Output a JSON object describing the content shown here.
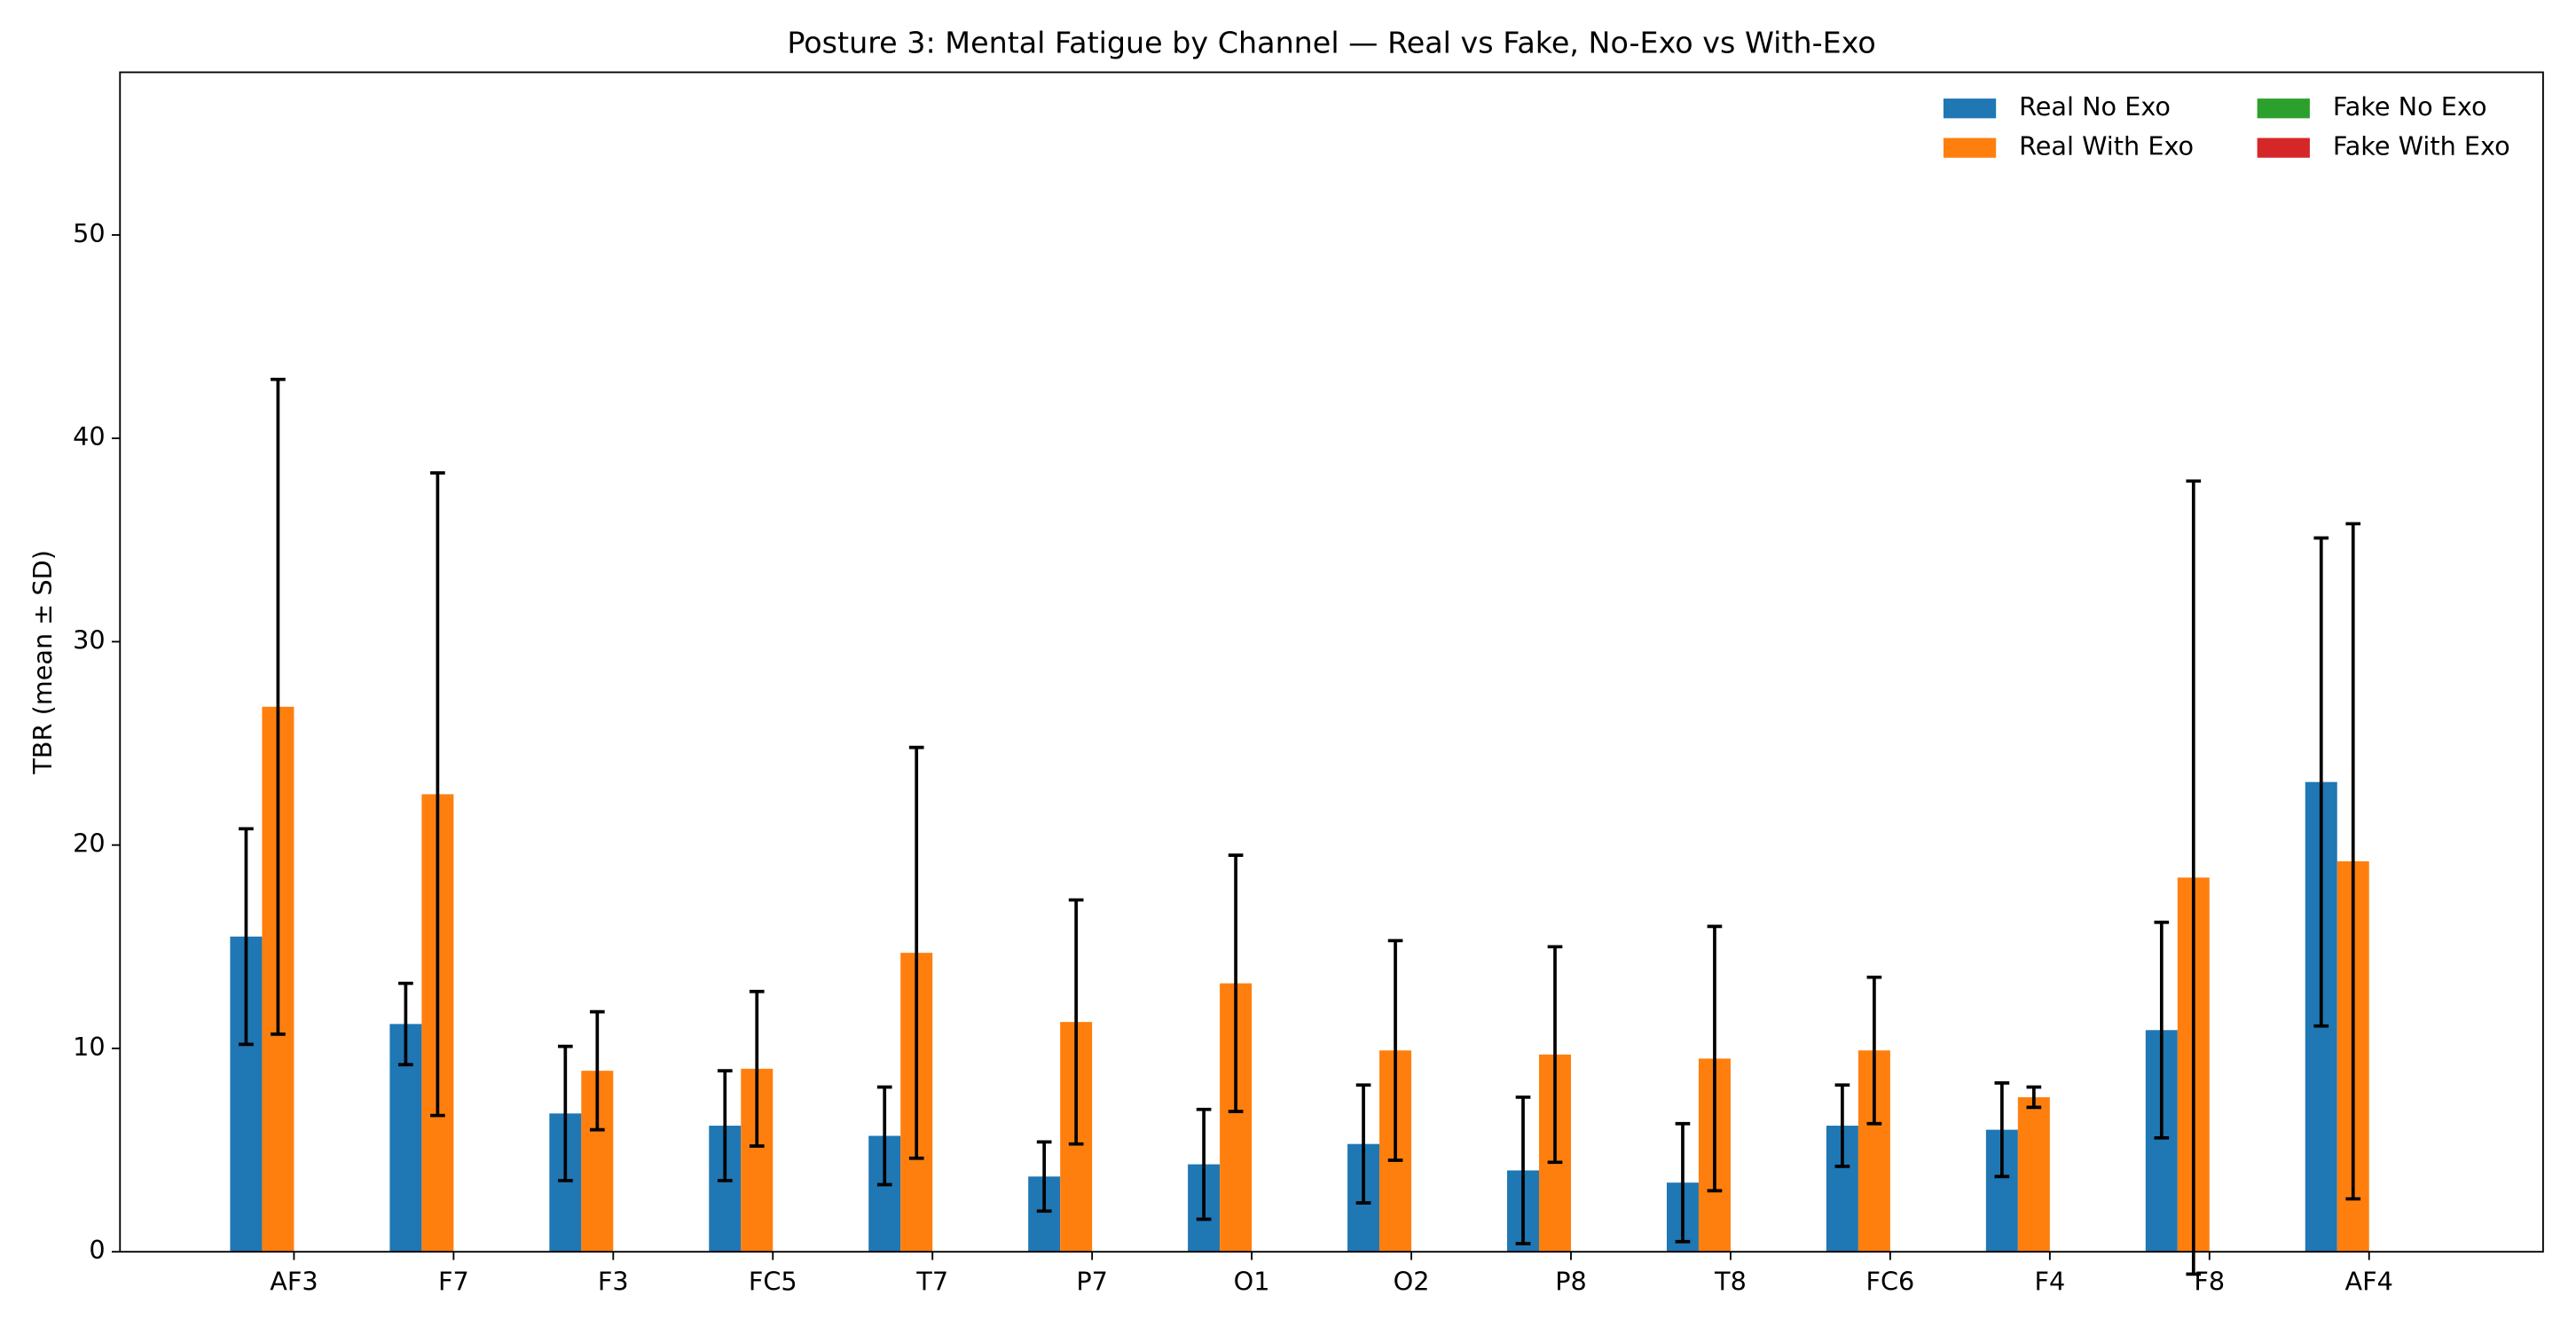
{
  "chart_data": {
    "type": "bar",
    "title": "Posture 3: Mental Fatigue by Channel — Real vs Fake, No-Exo vs With-Exo",
    "y_label": "TBR (mean ± SD)",
    "categories": [
      "AF3",
      "F7",
      "F3",
      "FC5",
      "T7",
      "P7",
      "O1",
      "O2",
      "P8",
      "T8",
      "FC6",
      "F4",
      "F8",
      "AF4"
    ],
    "series": [
      {
        "name": "Real No Exo",
        "color": "#1f77b4",
        "values": [
          15.5,
          11.2,
          6.8,
          6.2,
          5.7,
          3.7,
          4.3,
          5.3,
          4.0,
          3.4,
          6.2,
          6.0,
          10.9,
          23.1
        ],
        "errors": [
          5.3,
          2.0,
          3.3,
          2.7,
          2.4,
          1.7,
          2.7,
          2.9,
          3.6,
          2.9,
          2.0,
          2.3,
          5.3,
          12.0
        ]
      },
      {
        "name": "Real With Exo",
        "color": "#ff7f0e",
        "values": [
          26.8,
          22.5,
          8.9,
          9.0,
          14.7,
          11.3,
          13.2,
          9.9,
          9.7,
          9.5,
          9.9,
          7.6,
          18.4,
          19.2
        ],
        "errors": [
          16.1,
          15.8,
          2.9,
          3.8,
          10.1,
          6.0,
          6.3,
          5.4,
          5.3,
          6.5,
          3.6,
          0.5,
          19.5,
          16.6
        ]
      },
      {
        "name": "Fake No Exo",
        "color": "#2ca02c",
        "values": [
          null,
          null,
          null,
          null,
          null,
          null,
          null,
          null,
          null,
          null,
          null,
          null,
          null,
          null
        ],
        "errors": [
          null,
          null,
          null,
          null,
          null,
          null,
          null,
          null,
          null,
          null,
          null,
          null,
          null,
          null
        ]
      },
      {
        "name": "Fake With Exo",
        "color": "#d62728",
        "values": [
          null,
          null,
          null,
          null,
          null,
          null,
          null,
          null,
          null,
          null,
          null,
          null,
          null,
          null
        ],
        "errors": [
          null,
          null,
          null,
          null,
          null,
          null,
          null,
          null,
          null,
          null,
          null,
          null,
          null,
          null
        ]
      }
    ],
    "ylim": [
      0,
      58
    ],
    "yticks": [
      0,
      10,
      20,
      30,
      40,
      50
    ],
    "grid": false,
    "legend": "upper right"
  }
}
